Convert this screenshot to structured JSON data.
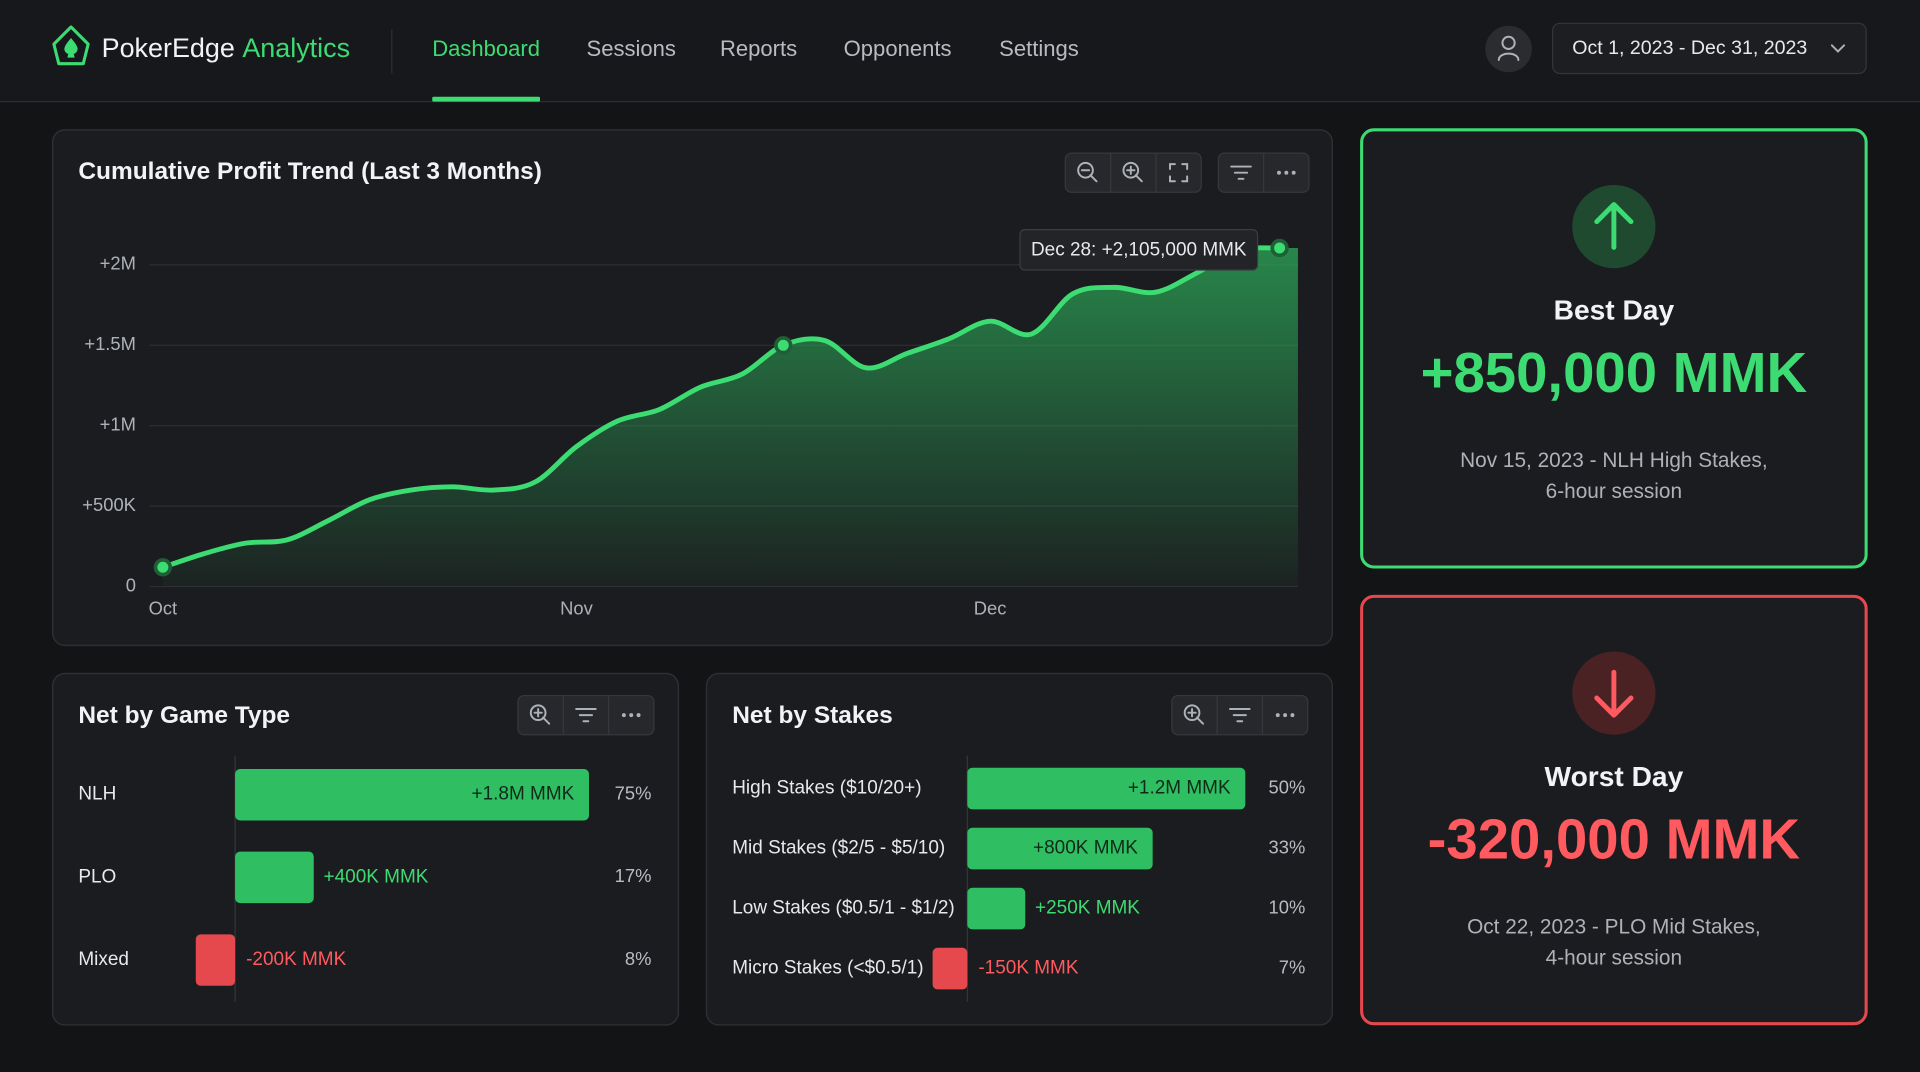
{
  "header": {
    "brand": "PokerEdge",
    "brand_accent": "Analytics",
    "nav": [
      "Dashboard",
      "Sessions",
      "Reports",
      "Opponents",
      "Settings"
    ],
    "date_range": "Oct 1, 2023 - Dec 31, 2023"
  },
  "chart_data": [
    {
      "type": "area",
      "title": "Cumulative Profit Trend (Last 3 Months)",
      "categories": [
        "Oct",
        null,
        null,
        null,
        null,
        null,
        null,
        null,
        null,
        null,
        "Nov",
        null,
        null,
        null,
        null,
        null,
        null,
        null,
        null,
        null,
        "Dec",
        null,
        null,
        null,
        null,
        null,
        null,
        null
      ],
      "values": [
        120000,
        205000,
        270000,
        290000,
        410000,
        540000,
        600000,
        620000,
        600000,
        650000,
        870000,
        1030000,
        1100000,
        1240000,
        1320000,
        1500000,
        1530000,
        1360000,
        1450000,
        1540000,
        1650000,
        1570000,
        1820000,
        1860000,
        1830000,
        1950000,
        2090000,
        2105000
      ],
      "ylim": [
        0,
        2200000
      ],
      "yticks": [
        0,
        {
          "value": 500000,
          "label": "+500K"
        },
        {
          "value": 1000000,
          "label": "+1M"
        },
        {
          "value": 1500000,
          "label": "+1.5M"
        },
        {
          "value": 2000000,
          "label": "+2M"
        }
      ],
      "grid": true,
      "color": "#3ddc73",
      "annotation": "Dec 28: +2,105,000 MMK"
    },
    {
      "type": "bar",
      "orientation": "horizontal",
      "title": "Net by Game Type",
      "categories": [
        "NLH",
        "PLO",
        "Mixed"
      ],
      "values": [
        1800000,
        400000,
        -200000
      ],
      "value_labels": [
        "+1.8M MMK",
        "+400K MMK",
        "-200K MMK"
      ],
      "shares": [
        "75%",
        "17%",
        "8%"
      ],
      "color": "#2fbf62",
      "negative_color": "#e5484d"
    },
    {
      "type": "bar",
      "orientation": "horizontal",
      "title": "Net by Stakes",
      "categories": [
        "High Stakes ($10/20+)",
        "Mid Stakes ($2/5 - $5/10)",
        "Low Stakes ($0.5/1 - $1/2)",
        "Micro Stakes (<$0.5/1)"
      ],
      "values": [
        1200000,
        800000,
        250000,
        -150000
      ],
      "value_labels": [
        "+1.2M MMK",
        "+800K MMK",
        "+250K MMK",
        "-150K MMK"
      ],
      "shares": [
        "50%",
        "33%",
        "10%",
        "7%"
      ],
      "color": "#2fbf62",
      "negative_color": "#e5484d"
    }
  ],
  "cards": [
    {
      "title": "Best Day",
      "value": "+850,000 MMK",
      "detail": [
        "Nov 15, 2023 - NLH High Stakes,",
        "6-hour session"
      ]
    },
    {
      "title": "Worst Day",
      "value": "-320,000 MMK",
      "detail": [
        "Oct 22, 2023 - PLO Mid Stakes,",
        "4-hour session"
      ]
    }
  ]
}
